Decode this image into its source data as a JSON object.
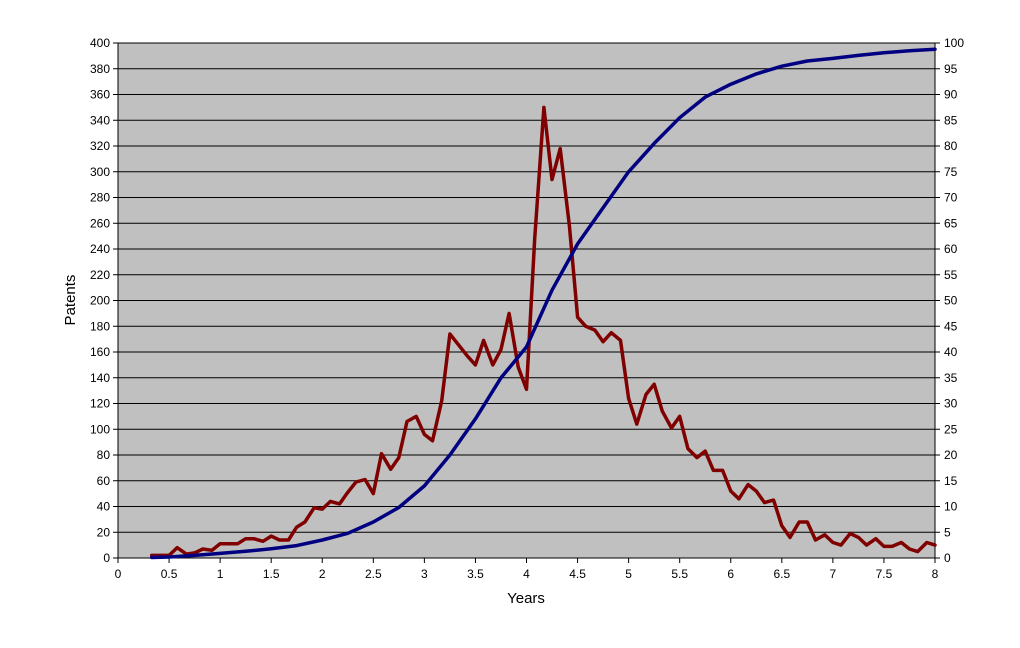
{
  "chart_data": {
    "type": "line",
    "title": "",
    "xlabel": "Years",
    "ylabel": "Patents",
    "y2label": "",
    "xlim": [
      0,
      8
    ],
    "ylim": [
      0,
      400
    ],
    "y2lim": [
      0,
      100
    ],
    "x_ticks": [
      "0",
      "0.5",
      "1",
      "1.5",
      "2",
      "2.5",
      "3",
      "3.5",
      "4",
      "4.5",
      "5",
      "5.5",
      "6",
      "6.5",
      "7",
      "7.5",
      "8"
    ],
    "y_ticks": [
      "0",
      "20",
      "40",
      "60",
      "80",
      "100",
      "120",
      "140",
      "160",
      "180",
      "200",
      "220",
      "240",
      "260",
      "280",
      "300",
      "320",
      "340",
      "360",
      "380",
      "400"
    ],
    "y2_ticks": [
      "0",
      "5",
      "10",
      "15",
      "20",
      "25",
      "30",
      "35",
      "40",
      "45",
      "50",
      "55",
      "60",
      "65",
      "70",
      "75",
      "80",
      "85",
      "90",
      "95",
      "100"
    ],
    "grid": "horizontal",
    "plot_background": "#c0c0c0",
    "series": [
      {
        "axis": "left",
        "color": "#800000",
        "x": [
          0.33,
          0.42,
          0.5,
          0.58,
          0.67,
          0.75,
          0.83,
          0.92,
          1.0,
          1.08,
          1.17,
          1.25,
          1.33,
          1.42,
          1.5,
          1.58,
          1.67,
          1.75,
          1.83,
          1.92,
          2.0,
          2.08,
          2.17,
          2.25,
          2.33,
          2.42,
          2.5,
          2.58,
          2.67,
          2.75,
          2.83,
          2.92,
          3.0,
          3.08,
          3.17,
          3.25,
          3.33,
          3.42,
          3.5,
          3.58,
          3.67,
          3.75,
          3.83,
          3.92,
          4.0,
          4.08,
          4.17,
          4.25,
          4.33,
          4.42,
          4.5,
          4.58,
          4.67,
          4.75,
          4.83,
          4.92,
          5.0,
          5.08,
          5.17,
          5.25,
          5.33,
          5.42,
          5.5,
          5.58,
          5.67,
          5.75,
          5.83,
          5.92,
          6.0,
          6.08,
          6.17,
          6.25,
          6.33,
          6.42,
          6.5,
          6.58,
          6.67,
          6.75,
          6.83,
          6.92,
          7.0,
          7.08,
          7.17,
          7.25,
          7.33,
          7.42,
          7.5,
          7.58,
          7.67,
          7.75,
          7.83,
          7.92,
          8.0
        ],
        "y": [
          2,
          2,
          2,
          8,
          3,
          4,
          7,
          6,
          11,
          11,
          11,
          15,
          15,
          13,
          17,
          14,
          14,
          24,
          28,
          39,
          38,
          44,
          42,
          51,
          59,
          61,
          50,
          81,
          69,
          78,
          106,
          110,
          96,
          91,
          122,
          174,
          166,
          157,
          150,
          169,
          150,
          162,
          190,
          148,
          131,
          248,
          350,
          294,
          318,
          258,
          187,
          180,
          177,
          168,
          175,
          169,
          124,
          104,
          127,
          135,
          114,
          101,
          110,
          85,
          78,
          83,
          68,
          68,
          52,
          46,
          57,
          52,
          43,
          45,
          25,
          16,
          28,
          28,
          14,
          18,
          12,
          10,
          19,
          16,
          10,
          15,
          9,
          9,
          12,
          7,
          5,
          12,
          10
        ]
      },
      {
        "axis": "right",
        "color": "#000080",
        "x": [
          0.33,
          0.5,
          0.75,
          1.0,
          1.25,
          1.5,
          1.75,
          2.0,
          2.25,
          2.5,
          2.75,
          3.0,
          3.25,
          3.5,
          3.75,
          4.0,
          4.25,
          4.5,
          4.75,
          5.0,
          5.25,
          5.5,
          5.75,
          6.0,
          6.25,
          6.5,
          6.75,
          7.0,
          7.25,
          7.5,
          7.75,
          8.0
        ],
        "y": [
          0.1,
          0.2,
          0.5,
          0.9,
          1.3,
          1.8,
          2.4,
          3.5,
          4.8,
          7.0,
          9.8,
          14.0,
          20.0,
          27.0,
          35.0,
          41.0,
          52.0,
          61.0,
          68.0,
          75.0,
          80.5,
          85.5,
          89.5,
          92.0,
          94.0,
          95.5,
          96.5,
          97.0,
          97.6,
          98.1,
          98.5,
          98.8
        ]
      }
    ]
  }
}
